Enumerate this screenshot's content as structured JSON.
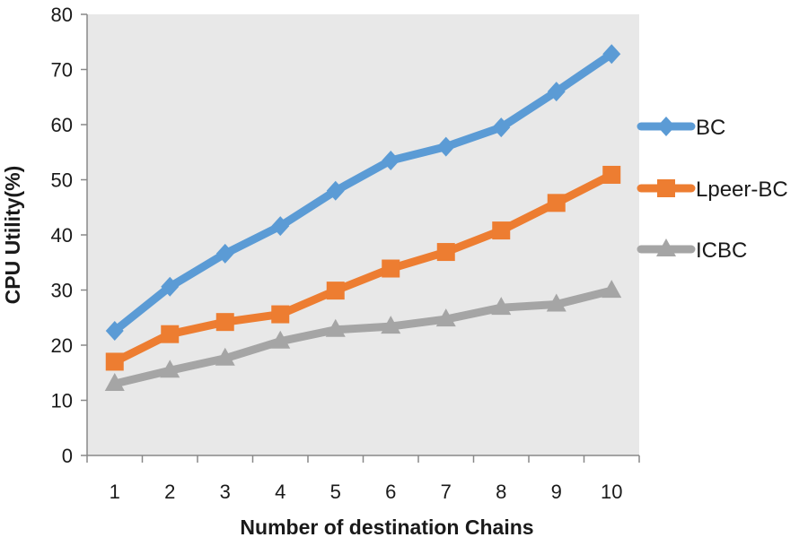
{
  "chart_data": {
    "type": "line",
    "title": "",
    "xlabel": "Number of destination Chains",
    "ylabel": "CPU Utility(%)",
    "categories": [
      "1",
      "2",
      "3",
      "4",
      "5",
      "6",
      "7",
      "8",
      "9",
      "10"
    ],
    "ylim": [
      0,
      80
    ],
    "yticks": [
      "0",
      "10",
      "20",
      "30",
      "40",
      "50",
      "60",
      "70",
      "80"
    ],
    "grid": false,
    "legend_position": "right",
    "plot_background": "#e8e8e8",
    "series": [
      {
        "name": "BC",
        "color": "#5b9bd5",
        "marker": "diamond",
        "values": [
          22.6,
          30.6,
          36.6,
          41.6,
          48.0,
          53.5,
          56.0,
          59.5,
          66.0,
          72.8
        ]
      },
      {
        "name": "Lpeer-BC",
        "color": "#ed7d31",
        "marker": "square",
        "values": [
          17.0,
          22.0,
          24.2,
          25.6,
          29.9,
          33.9,
          36.9,
          40.8,
          45.8,
          50.9
        ]
      },
      {
        "name": "ICBC",
        "color": "#a5a5a5",
        "marker": "triangle",
        "values": [
          13.0,
          15.4,
          17.6,
          20.7,
          22.8,
          23.4,
          24.7,
          26.8,
          27.4,
          29.9
        ]
      }
    ]
  }
}
